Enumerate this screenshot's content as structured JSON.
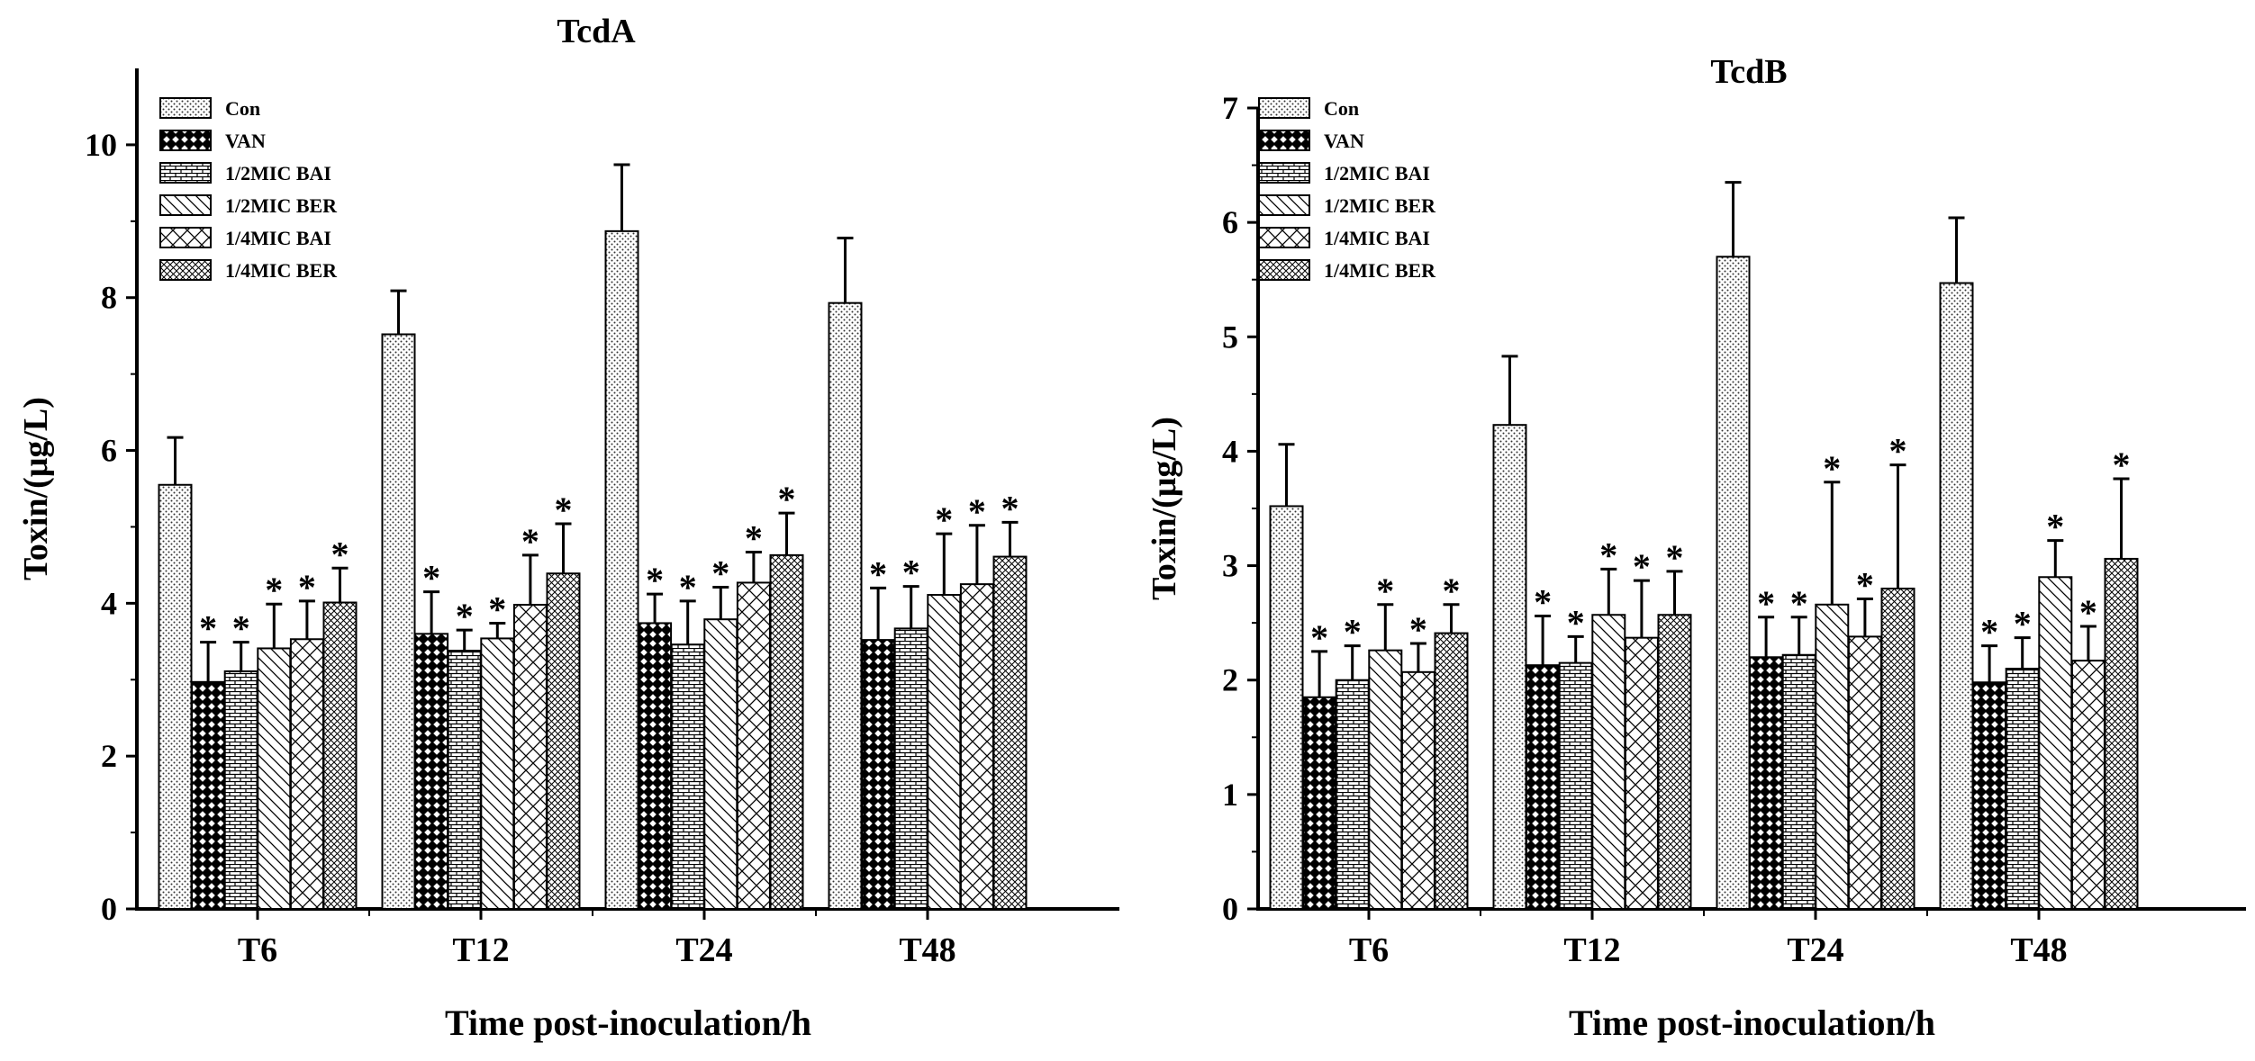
{
  "chart_data": [
    {
      "type": "bar",
      "title": "TcdA",
      "xlabel": "Time post-inoculation/h",
      "ylabel": "Toxin/(μg/L)",
      "ylim": [
        0,
        11
      ],
      "yticks": [
        0,
        2,
        4,
        6,
        8,
        10
      ],
      "categories": [
        "T6",
        "T12",
        "T24",
        "T48"
      ],
      "legend_position": "top-left",
      "significance_marker": "*",
      "series": [
        {
          "name": "Con",
          "pattern": "dots",
          "values": [
            5.55,
            7.52,
            8.87,
            7.93
          ],
          "errors": [
            0.62,
            0.57,
            0.87,
            0.85
          ],
          "significant": [
            false,
            false,
            false,
            false
          ]
        },
        {
          "name": "VAN",
          "pattern": "diamonds",
          "values": [
            2.97,
            3.6,
            3.74,
            3.52
          ],
          "errors": [
            0.52,
            0.55,
            0.38,
            0.68
          ],
          "significant": [
            true,
            true,
            true,
            true
          ]
        },
        {
          "name": "1/2MIC BAI",
          "pattern": "bricks",
          "values": [
            3.11,
            3.38,
            3.46,
            3.67
          ],
          "errors": [
            0.38,
            0.27,
            0.57,
            0.55
          ],
          "significant": [
            true,
            true,
            true,
            true
          ]
        },
        {
          "name": "1/2MIC BER",
          "pattern": "diagonal",
          "values": [
            3.41,
            3.54,
            3.79,
            4.11
          ],
          "errors": [
            0.58,
            0.2,
            0.42,
            0.8
          ],
          "significant": [
            true,
            true,
            true,
            true
          ]
        },
        {
          "name": "1/4MIC BAI",
          "pattern": "crosshatch",
          "values": [
            3.53,
            3.98,
            4.27,
            4.25
          ],
          "errors": [
            0.5,
            0.65,
            0.4,
            0.77
          ],
          "significant": [
            true,
            true,
            true,
            true
          ]
        },
        {
          "name": "1/4MIC BER",
          "pattern": "fine-crosshatch",
          "values": [
            4.01,
            4.39,
            4.63,
            4.61
          ],
          "errors": [
            0.45,
            0.65,
            0.55,
            0.45
          ],
          "significant": [
            true,
            true,
            true,
            true
          ]
        }
      ]
    },
    {
      "type": "bar",
      "title": "TcdB",
      "xlabel": "Time post-inoculation/h",
      "ylabel": "Toxin/(μg/L)",
      "ylim": [
        0,
        7
      ],
      "yticks": [
        0,
        1,
        2,
        3,
        4,
        5,
        6,
        7
      ],
      "categories": [
        "T6",
        "T12",
        "T24",
        "T48"
      ],
      "legend_position": "top-left",
      "significance_marker": "*",
      "series": [
        {
          "name": "Con",
          "pattern": "dots",
          "values": [
            3.52,
            4.23,
            5.7,
            5.47
          ],
          "errors": [
            0.54,
            0.6,
            0.65,
            0.57
          ],
          "significant": [
            false,
            false,
            false,
            false
          ]
        },
        {
          "name": "VAN",
          "pattern": "diamonds",
          "values": [
            1.85,
            2.13,
            2.2,
            1.98
          ],
          "errors": [
            0.4,
            0.43,
            0.35,
            0.32
          ],
          "significant": [
            true,
            true,
            true,
            true
          ]
        },
        {
          "name": "1/2MIC BAI",
          "pattern": "bricks",
          "values": [
            2.0,
            2.15,
            2.22,
            2.1
          ],
          "errors": [
            0.3,
            0.23,
            0.33,
            0.27
          ],
          "significant": [
            true,
            true,
            true,
            true
          ]
        },
        {
          "name": "1/2MIC BER",
          "pattern": "diagonal",
          "values": [
            2.26,
            2.57,
            2.66,
            2.9
          ],
          "errors": [
            0.4,
            0.4,
            1.07,
            0.32
          ],
          "significant": [
            true,
            true,
            true,
            true
          ]
        },
        {
          "name": "1/4MIC BAI",
          "pattern": "crosshatch",
          "values": [
            2.07,
            2.37,
            2.38,
            2.17
          ],
          "errors": [
            0.25,
            0.5,
            0.33,
            0.3
          ],
          "significant": [
            true,
            true,
            true,
            true
          ]
        },
        {
          "name": "1/4MIC BER",
          "pattern": "fine-crosshatch",
          "values": [
            2.41,
            2.57,
            2.8,
            3.06
          ],
          "errors": [
            0.25,
            0.38,
            1.08,
            0.7
          ],
          "significant": [
            true,
            true,
            true,
            true
          ]
        }
      ]
    }
  ]
}
